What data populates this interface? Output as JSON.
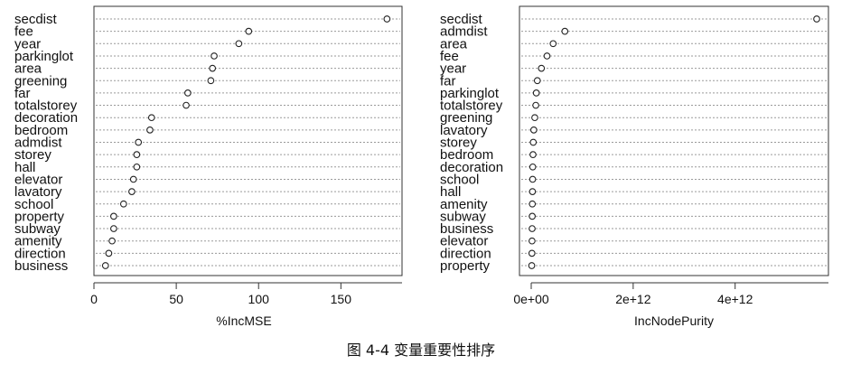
{
  "caption": "图 4-4  变量重要性排序",
  "chart_data": [
    {
      "type": "scatter",
      "xlabel": "%IncMSE",
      "xticks": [
        "0",
        "50",
        "100",
        "150"
      ],
      "xtick_values": [
        0,
        50,
        100,
        150
      ],
      "xlim": [
        0,
        180
      ],
      "grid": "horizontal dotted",
      "categories": [
        "secdist",
        "fee",
        "year",
        "parkinglot",
        "area",
        "greening",
        "far",
        "totalstorey",
        "decoration",
        "bedroom",
        "admdist",
        "storey",
        "hall",
        "elevator",
        "lavatory",
        "school",
        "property",
        "subway",
        "amenity",
        "direction",
        "business"
      ],
      "values": [
        178,
        94,
        88,
        73,
        72,
        71,
        57,
        56,
        35,
        34,
        27,
        26,
        26,
        24,
        23,
        18,
        12,
        12,
        11,
        9,
        7
      ]
    },
    {
      "type": "scatter",
      "xlabel": "IncNodePurity",
      "xticks": [
        "0e+00",
        "2e+12",
        "4e+12"
      ],
      "xtick_values": [
        0,
        2000000000000,
        4000000000000
      ],
      "xlim": [
        0,
        5600000000000
      ],
      "grid": "horizontal dotted",
      "categories": [
        "secdist",
        "admdist",
        "area",
        "fee",
        "year",
        "far",
        "parkinglot",
        "totalstorey",
        "greening",
        "lavatory",
        "storey",
        "bedroom",
        "decoration",
        "school",
        "hall",
        "amenity",
        "subway",
        "business",
        "elevator",
        "direction",
        "property"
      ],
      "values": [
        5600000000000,
        660000000000,
        430000000000,
        310000000000,
        200000000000,
        120000000000,
        100000000000,
        90000000000,
        70000000000,
        50000000000,
        40000000000,
        35000000000,
        30000000000,
        28000000000,
        25000000000,
        22000000000,
        20000000000,
        18000000000,
        16000000000,
        14000000000,
        10000000000
      ]
    }
  ]
}
